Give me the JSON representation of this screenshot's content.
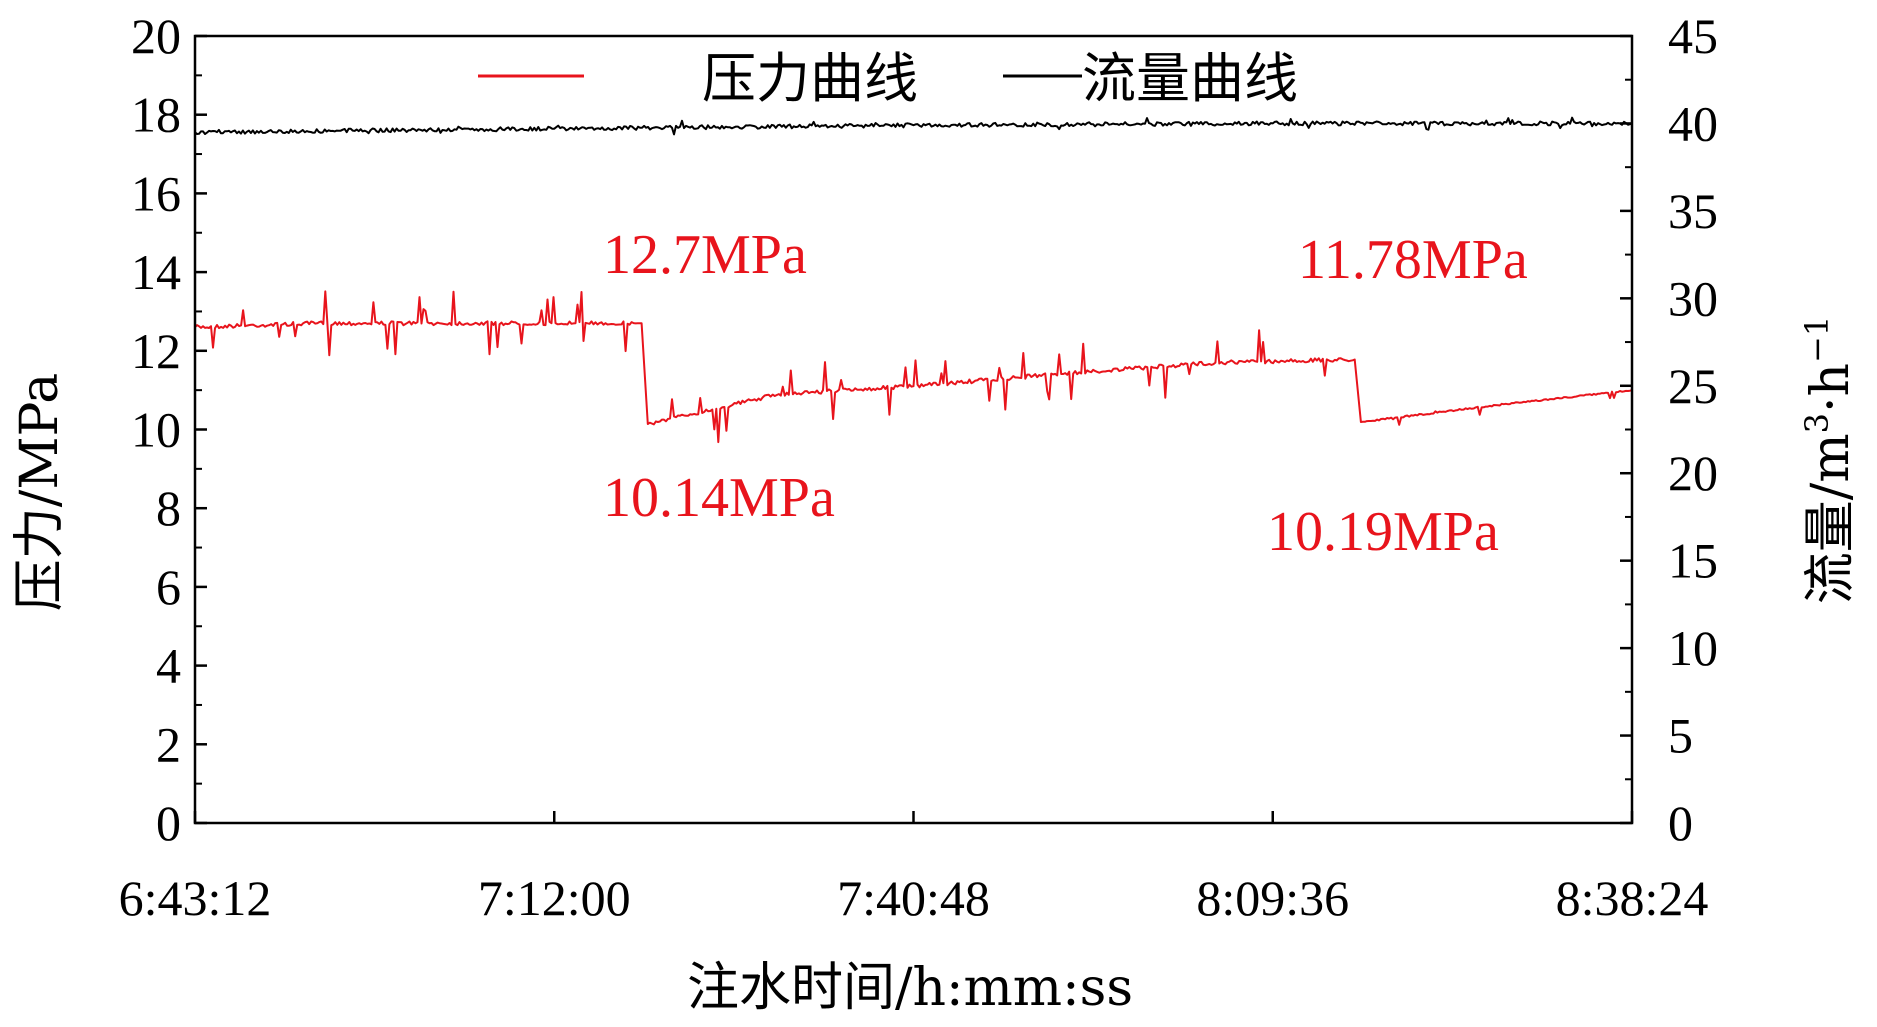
{
  "chart_data": {
    "type": "line",
    "xlabel": "注水时间/h:mm:ss",
    "ylabel_left": "压力/MPa",
    "ylabel_right": "流量/m3·h−1",
    "ylabel_right_parts": {
      "base": "流量/m",
      "sup1": "3",
      "mid": "·h",
      "sup2": "−1"
    },
    "x_ticks": [
      "6:43:12",
      "7:12:00",
      "7:40:48",
      "8:09:36",
      "8:38:24"
    ],
    "xlim": [
      "6:43:12",
      "8:38:24"
    ],
    "y_left_ticks": [
      "0",
      "2",
      "4",
      "6",
      "8",
      "10",
      "12",
      "14",
      "16",
      "18",
      "20"
    ],
    "ylim_left": [
      0,
      20
    ],
    "y_right_ticks": [
      "0",
      "5",
      "10",
      "15",
      "20",
      "25",
      "30",
      "35",
      "40",
      "45"
    ],
    "ylim_right": [
      0,
      45
    ],
    "grid": false,
    "legend": {
      "position": "top",
      "entries": [
        "压力曲线",
        "流量曲线"
      ]
    },
    "series": [
      {
        "name": "压力曲线",
        "axis": "left",
        "color": "#e8141c",
        "points": [
          [
            "6:43:12",
            12.6
          ],
          [
            "6:53:00",
            12.7
          ],
          [
            "7:02:00",
            12.7
          ],
          [
            "7:14:40",
            12.7
          ],
          [
            "7:19:00",
            12.7
          ],
          [
            "7:19:30",
            10.14
          ],
          [
            "7:30:00",
            10.9
          ],
          [
            "7:40:48",
            11.1
          ],
          [
            "7:52:00",
            11.4
          ],
          [
            "8:05:00",
            11.7
          ],
          [
            "8:16:10",
            11.78
          ],
          [
            "8:16:40",
            10.19
          ],
          [
            "8:27:00",
            10.6
          ],
          [
            "8:38:24",
            11.0
          ]
        ]
      },
      {
        "name": "流量曲线",
        "axis": "right",
        "color": "#000000",
        "points": [
          [
            "6:43:12",
            39.5
          ],
          [
            "7:12:00",
            39.7
          ],
          [
            "7:40:48",
            39.9
          ],
          [
            "8:09:36",
            40.0
          ],
          [
            "8:38:24",
            40.0
          ]
        ]
      }
    ],
    "annotations": [
      {
        "text": "12.7MPa",
        "x": "7:19:00",
        "y": 12.7
      },
      {
        "text": "10.14MPa",
        "x": "7:19:30",
        "y": 10.14
      },
      {
        "text": "11.78MPa",
        "x": "8:16:10",
        "y": 11.78
      },
      {
        "text": "10.19MPa",
        "x": "8:16:40",
        "y": 10.19
      }
    ],
    "colors": {
      "pressure": "#e8141c",
      "flow": "#000000",
      "axis": "#000000"
    }
  }
}
